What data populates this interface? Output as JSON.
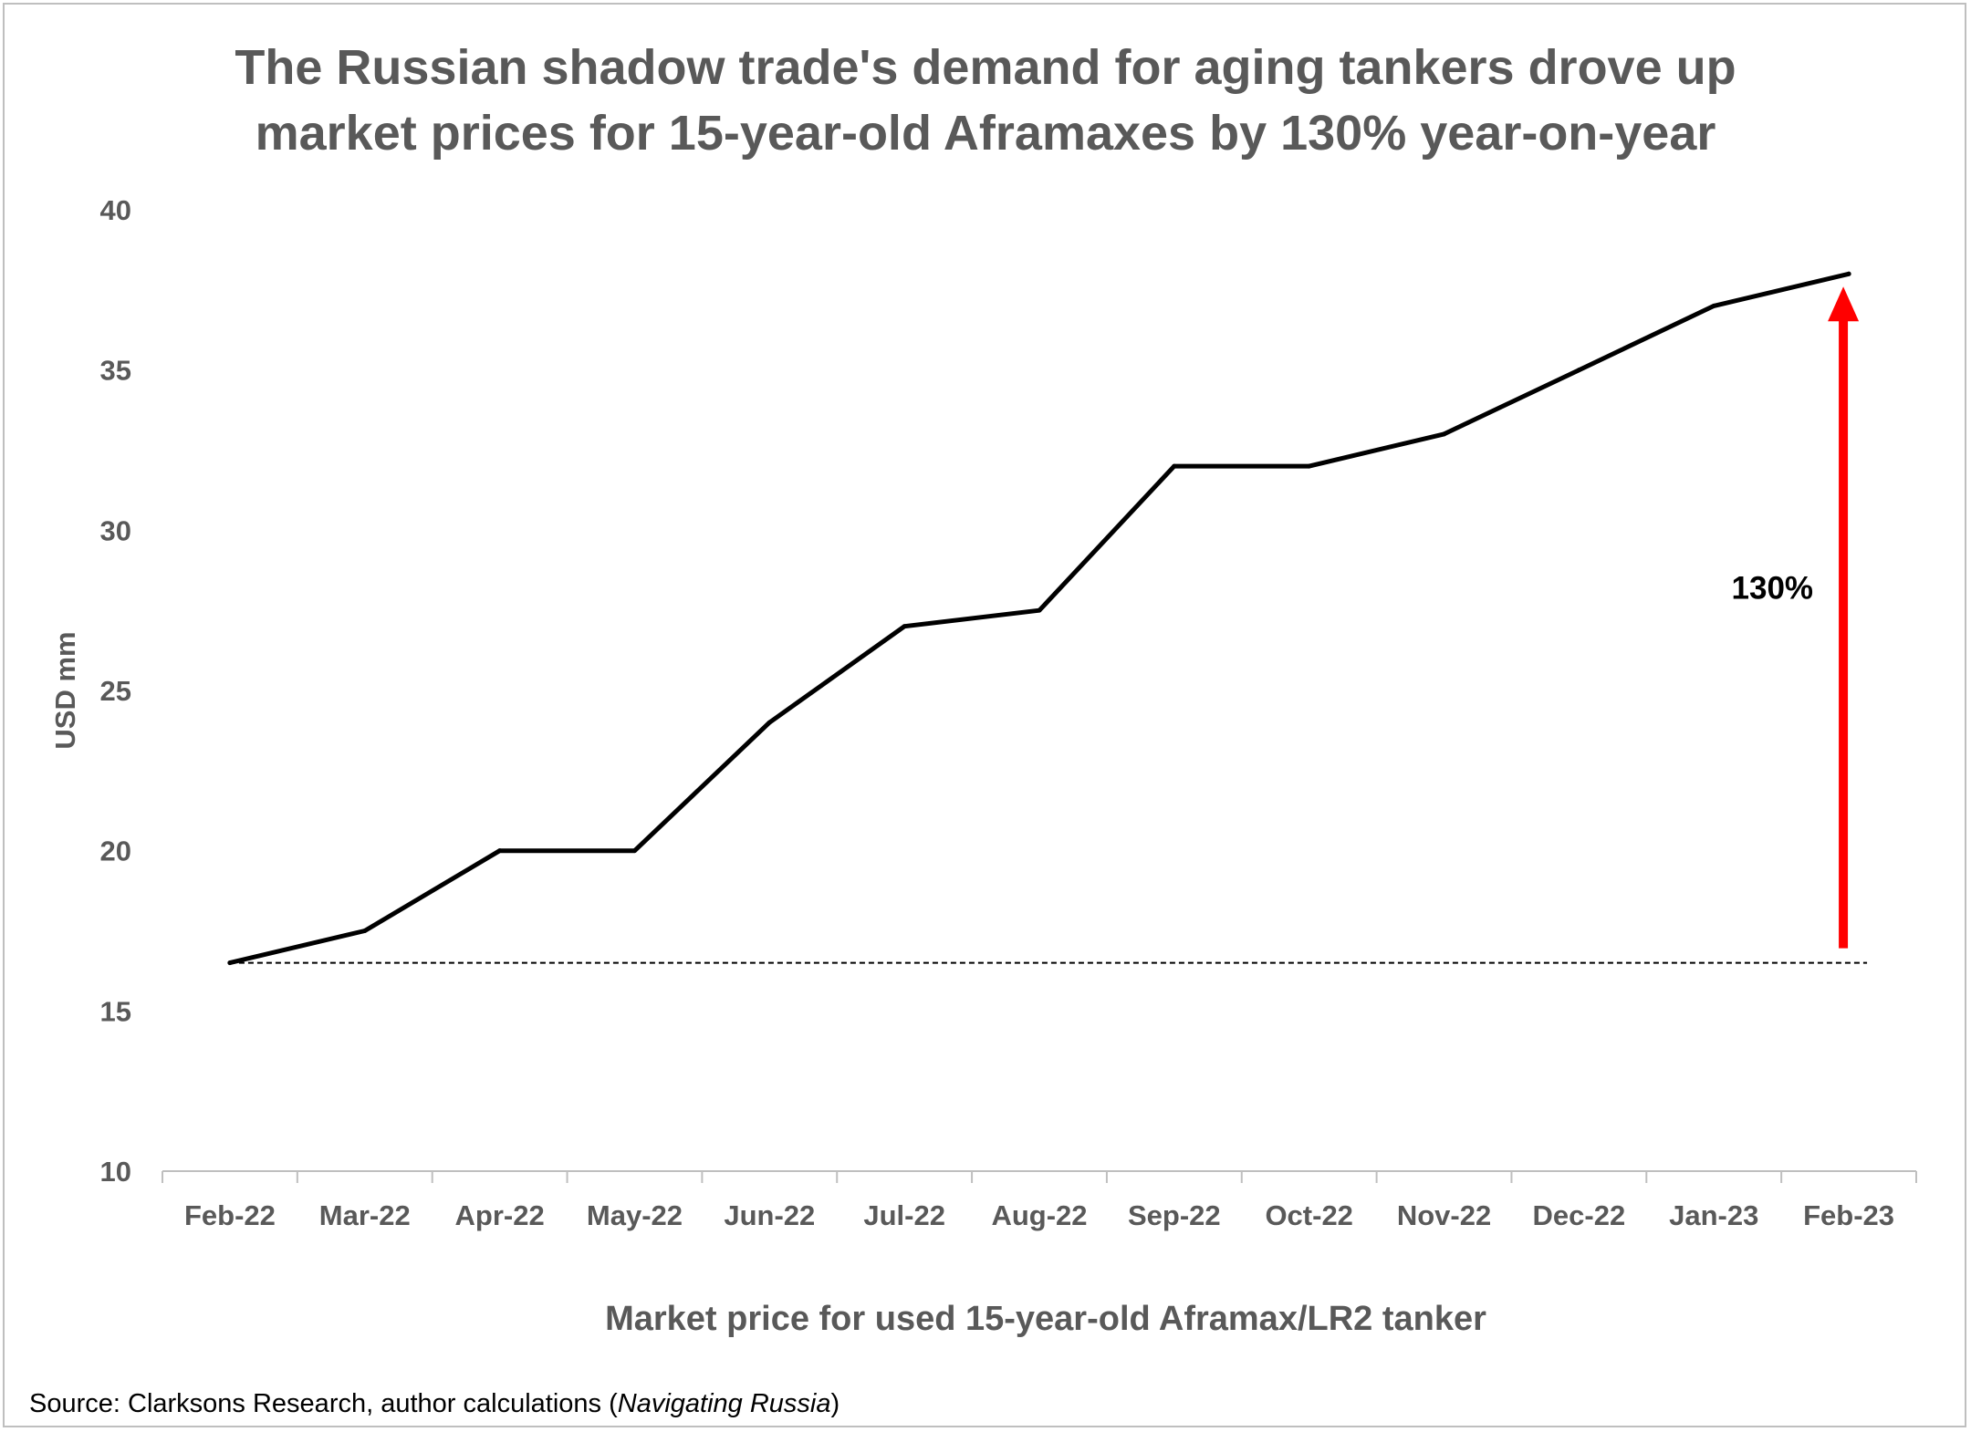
{
  "title_lines": [
    "The Russian shadow trade's demand for aging tankers drove up",
    "market prices for 15-year-old Aframaxes by 130% year-on-year"
  ],
  "source": {
    "prefix": "Source:  Clarksons Research,  author calculations (",
    "italic": "Navigating Russia",
    "suffix": ")"
  },
  "colors": {
    "text": "#595959",
    "line": "#000000",
    "arrow": "#ff0000",
    "axis": "#bfbfbf",
    "baseline": "#000000"
  },
  "chart_data": {
    "type": "line",
    "title": "The Russian shadow trade's demand for aging tankers drove up market prices for 15-year-old Aframaxes by 130% year-on-year",
    "xlabel": "Market price for used 15-year-old Aframax/LR2 tanker",
    "ylabel": "USD mm",
    "ylim": [
      10,
      40
    ],
    "yticks": [
      10,
      15,
      20,
      25,
      30,
      35,
      40
    ],
    "grid": false,
    "legend": "none",
    "categories": [
      "Feb-22",
      "Mar-22",
      "Apr-22",
      "May-22",
      "Jun-22",
      "Jul-22",
      "Aug-22",
      "Sep-22",
      "Oct-22",
      "Nov-22",
      "Dec-22",
      "Jan-23",
      "Feb-23"
    ],
    "series": [
      {
        "values": [
          16.5,
          17.5,
          20,
          20,
          24,
          27,
          27.5,
          32,
          32,
          33,
          35,
          37,
          38
        ]
      }
    ],
    "baseline": {
      "value": 16.5,
      "style": "dashed"
    },
    "annotations": [
      {
        "text": "130%",
        "type": "arrow",
        "from": 16.5,
        "to": 38,
        "category": "Feb-23"
      }
    ]
  }
}
